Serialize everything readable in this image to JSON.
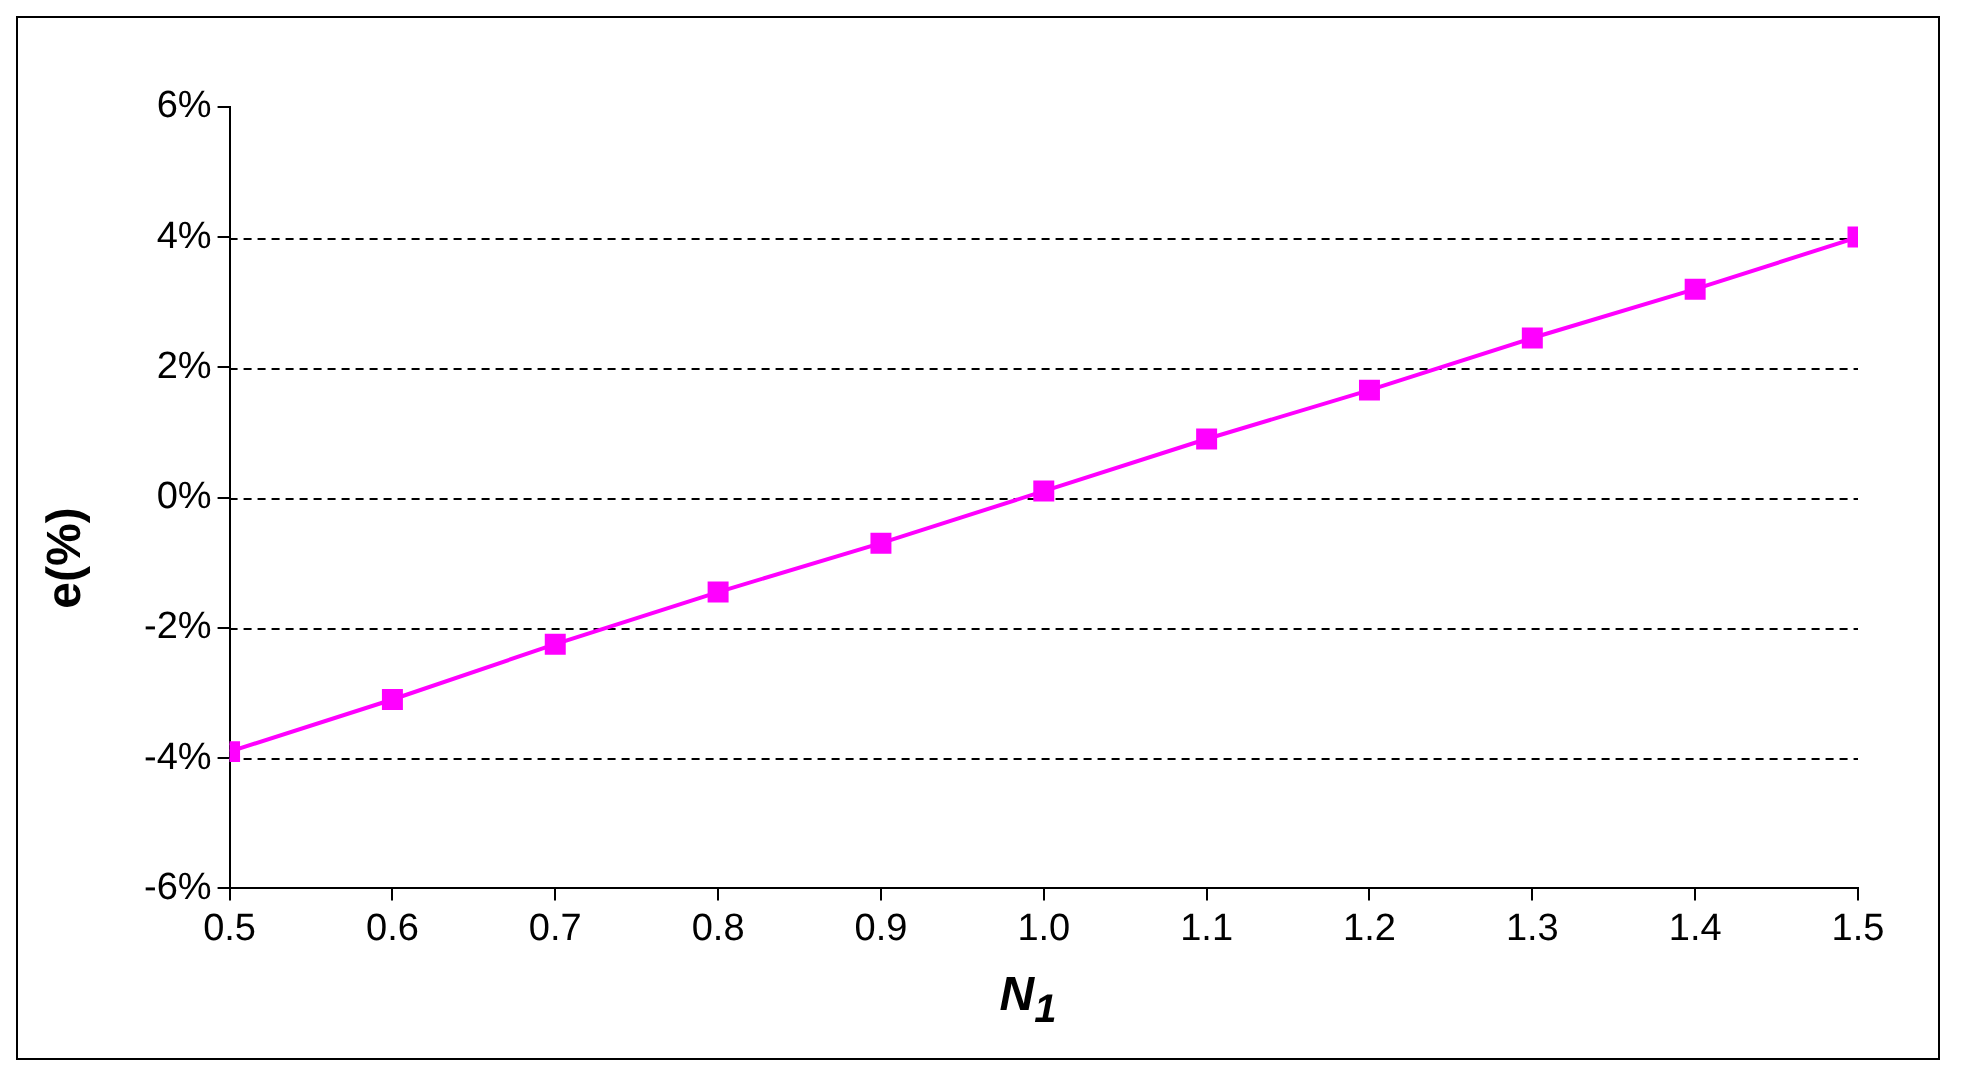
{
  "chart_data": {
    "type": "line",
    "xlabel": "N$_{1}$",
    "ylabel": "e(%)",
    "x": [
      0.5,
      0.6,
      0.7,
      0.8,
      0.9,
      1.0,
      1.1,
      1.2,
      1.3,
      1.4,
      1.5
    ],
    "series": [
      {
        "color": "#ff00ff",
        "values": [
          -3.9,
          -3.1,
          -2.25,
          -1.45,
          -0.7,
          0.1,
          0.9,
          1.65,
          2.45,
          3.2,
          4.0
        ]
      }
    ],
    "xlim": [
      0.5,
      1.5
    ],
    "xticks": [
      {
        "value": 0.5,
        "label": "0.5"
      },
      {
        "value": 0.6,
        "label": "0.6"
      },
      {
        "value": 0.7,
        "label": "0.7"
      },
      {
        "value": 0.8,
        "label": "0.8"
      },
      {
        "value": 0.9,
        "label": "0.9"
      },
      {
        "value": 1.0,
        "label": "1.0"
      },
      {
        "value": 1.1,
        "label": "1.1"
      },
      {
        "value": 1.2,
        "label": "1.2"
      },
      {
        "value": 1.3,
        "label": "1.3"
      },
      {
        "value": 1.4,
        "label": "1.4"
      },
      {
        "value": 1.5,
        "label": "1.5"
      }
    ],
    "ylim": [
      -6,
      6
    ],
    "yticks": [
      {
        "value": -6,
        "label": "-6%"
      },
      {
        "value": -4,
        "label": "-4%"
      },
      {
        "value": -2,
        "label": "-2%"
      },
      {
        "value": 0,
        "label": "0%"
      },
      {
        "value": 2,
        "label": "2%"
      },
      {
        "value": 4,
        "label": "4%"
      },
      {
        "value": 6,
        "label": "6%"
      }
    ],
    "grid": "y",
    "marker": "square",
    "line_style": "solid",
    "legend": false
  }
}
